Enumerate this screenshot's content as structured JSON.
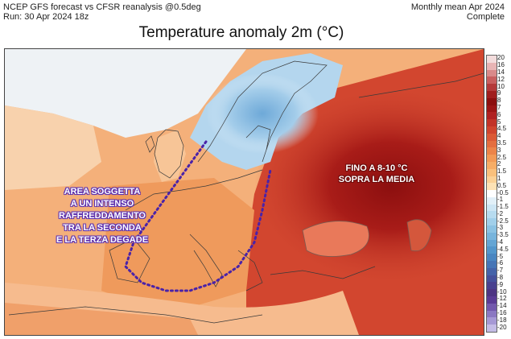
{
  "header": {
    "line1": "NCEP GFS forecast vs CFSR reanalysis @0.5deg",
    "line2": "Run: 30 Apr 2024 18z",
    "right1": "Monthly mean Apr 2024",
    "right2": "Complete"
  },
  "title": "Temperature anomaly 2m (°C)",
  "annotations": {
    "left": [
      "AREA SOGGETTA",
      "A UN INTENSO",
      "RAFFREDDAMENTO",
      "TRA LA SECONDA",
      "E LA TERZA DEGADE"
    ],
    "right": [
      "FINO A 8-10 °C",
      "SOPRA LA MEDIA"
    ]
  },
  "colorbar": {
    "labels": [
      "20",
      "16",
      "14",
      "12",
      "10",
      "9",
      "8",
      "7",
      "6",
      "5",
      "4.5",
      "4",
      "3.5",
      "3",
      "2.5",
      "2",
      "1.5",
      "1",
      "0.5",
      "-0.5",
      "-1",
      "-1.5",
      "-2",
      "-2.5",
      "-3",
      "-3.5",
      "-4",
      "-4.5",
      "-5",
      "-6",
      "-7",
      "-8",
      "-9",
      "-10",
      "-12",
      "-14",
      "-16",
      "-18",
      "-20"
    ],
    "colors": [
      "#f3dcdc",
      "#e8b4b4",
      "#d98a8a",
      "#c85f5f",
      "#b43a3a",
      "#a01e1e",
      "#8c0f0f",
      "#9c1616",
      "#b02222",
      "#c23328",
      "#d0452e",
      "#db5a36",
      "#e46e3f",
      "#ec8449",
      "#f29a56",
      "#f6ad66",
      "#f9c07c",
      "#fbd196",
      "#fde2b5",
      "#ffffff",
      "#e2f0f8",
      "#cde6f4",
      "#b7dbef",
      "#a1cfea",
      "#8bc2e3",
      "#77b4dc",
      "#64a5d4",
      "#5396cb",
      "#4a86c1",
      "#4675b6",
      "#4563a9",
      "#46519c",
      "#49418f",
      "#4e3583",
      "#5b3c95",
      "#7359ad",
      "#8b78c2",
      "#a699d5",
      "#c4bce6"
    ]
  },
  "colors": {
    "annotation_outline_left": "#5b2fb0",
    "dotted_line": "#4a22a8",
    "annotation_outline_right": "#6a0a0a",
    "cold_scandinavia": "#9ec9e8",
    "warm_russia": "#b82e22"
  }
}
